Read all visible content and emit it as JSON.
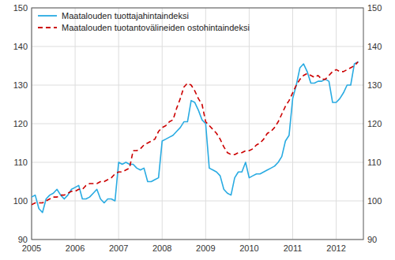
{
  "chart_data": {
    "type": "line",
    "x": [
      2005.0,
      2005.083,
      2005.167,
      2005.25,
      2005.333,
      2005.417,
      2005.5,
      2005.583,
      2005.667,
      2005.75,
      2005.833,
      2005.917,
      2006.0,
      2006.083,
      2006.167,
      2006.25,
      2006.333,
      2006.417,
      2006.5,
      2006.583,
      2006.667,
      2006.75,
      2006.833,
      2006.917,
      2007.0,
      2007.083,
      2007.167,
      2007.25,
      2007.333,
      2007.417,
      2007.5,
      2007.583,
      2007.667,
      2007.75,
      2007.833,
      2007.917,
      2008.0,
      2008.083,
      2008.167,
      2008.25,
      2008.333,
      2008.417,
      2008.5,
      2008.583,
      2008.667,
      2008.75,
      2008.833,
      2008.917,
      2009.0,
      2009.083,
      2009.167,
      2009.25,
      2009.333,
      2009.417,
      2009.5,
      2009.583,
      2009.667,
      2009.75,
      2009.833,
      2009.917,
      2010.0,
      2010.083,
      2010.167,
      2010.25,
      2010.333,
      2010.417,
      2010.5,
      2010.583,
      2010.667,
      2010.75,
      2010.833,
      2010.917,
      2011.0,
      2011.083,
      2011.167,
      2011.25,
      2011.333,
      2011.417,
      2011.5,
      2011.583,
      2011.667,
      2011.75,
      2011.833,
      2011.917,
      2012.0,
      2012.083,
      2012.167,
      2012.25,
      2012.333,
      2012.417,
      2012.5
    ],
    "series": [
      {
        "name": "Maatalouden tuottajahintaindeksi",
        "color": "#29abe2",
        "line_style": "solid",
        "values": [
          101.0,
          101.5,
          98.0,
          97.0,
          100.5,
          101.5,
          102.0,
          103.0,
          101.5,
          100.5,
          101.5,
          103.0,
          103.5,
          104.0,
          100.5,
          100.5,
          101.0,
          102.0,
          103.0,
          100.5,
          99.5,
          100.5,
          100.5,
          100.0,
          110.0,
          109.5,
          110.0,
          109.5,
          109.5,
          108.5,
          108.0,
          108.5,
          105.0,
          105.0,
          105.5,
          106.0,
          115.5,
          116.0,
          116.5,
          117.0,
          118.0,
          119.0,
          120.5,
          120.5,
          126.0,
          125.5,
          123.5,
          121.0,
          120.0,
          108.5,
          108.0,
          107.5,
          106.5,
          103.0,
          102.0,
          101.5,
          106.0,
          107.5,
          107.5,
          110.0,
          106.0,
          106.5,
          107.0,
          107.0,
          107.5,
          108.0,
          108.5,
          109.0,
          110.0,
          111.5,
          115.5,
          117.0,
          126.5,
          130.0,
          134.5,
          135.5,
          133.5,
          130.5,
          130.5,
          131.0,
          131.0,
          131.5,
          131.0,
          125.5,
          125.5,
          126.5,
          128.0,
          130.0,
          130.0,
          135.5,
          136.0
        ]
      },
      {
        "name": "Maatalouden tuotantovälineiden ostohintaindeksi",
        "color": "#cc0000",
        "line_style": "dashed",
        "axis": "y2",
        "values": [
          99.0,
          99.5,
          99.5,
          99.5,
          100.0,
          100.5,
          101.0,
          101.0,
          101.5,
          101.5,
          102.0,
          102.5,
          102.5,
          103.0,
          103.0,
          104.0,
          104.5,
          104.5,
          104.5,
          105.0,
          105.0,
          105.5,
          106.0,
          107.0,
          107.5,
          107.5,
          108.0,
          108.5,
          113.0,
          113.0,
          113.5,
          114.5,
          115.0,
          115.5,
          116.0,
          118.0,
          119.0,
          119.5,
          120.5,
          121.0,
          124.0,
          126.5,
          129.5,
          130.5,
          130.0,
          128.5,
          126.5,
          125.0,
          120.5,
          119.5,
          118.5,
          117.5,
          116.0,
          114.0,
          112.5,
          112.0,
          112.0,
          112.5,
          112.5,
          113.0,
          113.0,
          113.5,
          114.5,
          115.0,
          116.0,
          117.5,
          118.0,
          119.0,
          120.5,
          122.5,
          124.5,
          126.0,
          128.0,
          130.0,
          131.5,
          132.5,
          133.0,
          132.5,
          132.0,
          132.5,
          131.5,
          131.5,
          132.5,
          133.5,
          134.0,
          133.5,
          133.5,
          134.0,
          134.5,
          135.0,
          136.0
        ]
      }
    ],
    "xlim": [
      2005.0,
      2012.625
    ],
    "xticks": [
      2005.0,
      2006.0,
      2007.0,
      2008.0,
      2009.0,
      2010.0,
      2011.0,
      2012.0
    ],
    "ylim": [
      90,
      150
    ],
    "yticks": [
      90,
      100,
      110,
      120,
      130,
      140,
      150
    ],
    "y2lim": [
      90,
      150
    ],
    "y2ticks": [
      90,
      100,
      110,
      120,
      130,
      140,
      150
    ],
    "grid": true,
    "legend": "upper left"
  }
}
